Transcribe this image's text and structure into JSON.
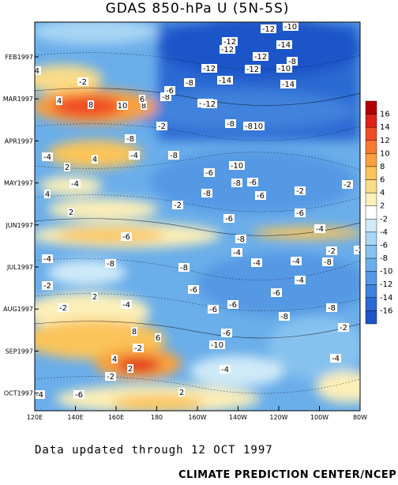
{
  "chart_data": {
    "type": "heatmap",
    "title": "GDAS 850-hPa U (5N-5S)",
    "x_ticks": [
      "120E",
      "140E",
      "160E",
      "180",
      "160W",
      "140W",
      "120W",
      "100W",
      "80W"
    ],
    "y_ticks": [
      "FEB1997",
      "MAR1997",
      "APR1997",
      "MAY1997",
      "JUN1997",
      "JUL1997",
      "AUG1997",
      "SEP1997",
      "OCT1997"
    ],
    "colorbar": {
      "labels": [
        "16",
        "14",
        "12",
        "10",
        "8",
        "6",
        "4",
        "2",
        "-2",
        "-4",
        "-6",
        "-8",
        "-10",
        "-12",
        "-14",
        "-16"
      ],
      "colors": [
        "#b40000",
        "#e0201a",
        "#f04b28",
        "#f57a32",
        "#f9a13e",
        "#fac45a",
        "#fbdc88",
        "#fcefb8",
        "#ffffff",
        "#cfeaf8",
        "#a9d6f4",
        "#87c2ef",
        "#6aaeea",
        "#5598e4",
        "#3f82dc",
        "#2c6ad3",
        "#1c55c8"
      ]
    },
    "contour_labels": [
      "-12",
      "-10",
      "-12",
      "-12",
      "-14",
      "-12",
      "-10",
      "-8",
      "-12",
      "-12",
      "-14",
      "-14",
      "-12",
      "-8",
      "-8",
      "-6",
      "-4",
      "-2",
      "4",
      "8",
      "10",
      "8",
      "6",
      "-8",
      "-10",
      "-8",
      "-6",
      "-2",
      "-2",
      "-4",
      "-4",
      "2",
      "-6",
      "-8",
      "-10",
      "-8",
      "-6",
      "-2",
      "-2",
      "-8",
      "-12",
      "-8",
      "-4",
      "4",
      "4",
      "2",
      "-6",
      "-4",
      "-8",
      "-4",
      "-6",
      "-8",
      "-2",
      "-4",
      "-6",
      "-6",
      "-8",
      "-6",
      "-4",
      "-2",
      "-4",
      "4",
      "2",
      "-2",
      "-4",
      "-6",
      "-6",
      "-4",
      "-8",
      "-8",
      "-10",
      "-6",
      "-4",
      "-8",
      "-2",
      "-4",
      "2",
      "4",
      "6",
      "8",
      "-4",
      "-8",
      "-6",
      "-4",
      "-2",
      "2",
      "-2",
      "2",
      "-2"
    ]
  },
  "footer": {
    "note": "Data updated through 12 OCT 1997",
    "credit": "CLIMATE PREDICTION CENTER/NCEP"
  }
}
